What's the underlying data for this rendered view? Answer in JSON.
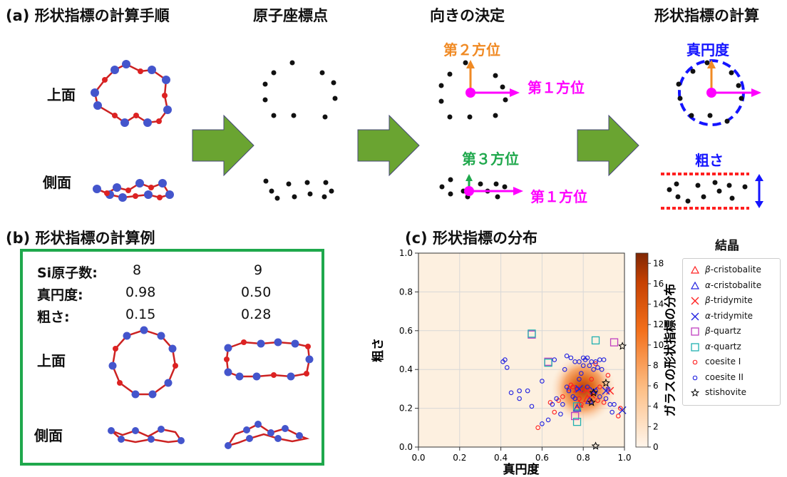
{
  "panel_a": {
    "title": "(a) 形状指標の計算手順",
    "col_atoms": "原子座標点",
    "col_orient": "向きの決定",
    "col_calc": "形状指標の計算",
    "top_view": "上面",
    "side_view": "側面",
    "dir2": "第２方位",
    "dir1_top": "第１方位",
    "dir3": "第３方位",
    "dir1_side": "第１方位",
    "circularity": "真円度",
    "roughness": "粗さ",
    "colors": {
      "orange": "#f08a24",
      "magenta": "#ff00ff",
      "green": "#1fa84c",
      "blue": "#1414ff",
      "red": "#ff2020",
      "arrow": "#6aa431"
    }
  },
  "panel_b": {
    "title": "(b) 形状指標の計算例",
    "si_label": "Si原子数:",
    "circ_label": "真円度:",
    "rough_label": "粗さ:",
    "ex1": {
      "si": "8",
      "circ": "0.98",
      "rough": "0.15"
    },
    "ex2": {
      "si": "9",
      "circ": "0.50",
      "rough": "0.28"
    },
    "top_view": "上面",
    "side_view": "側面"
  },
  "panel_c": {
    "title": "(c) 形状指標の分布",
    "legend_title": "結晶",
    "colorbar_label": "ガラスの形状指標の分布",
    "colorbar_ticks": [
      "0",
      "2",
      "4",
      "6",
      "8",
      "10",
      "12",
      "14",
      "16",
      "18"
    ]
  },
  "chart_data": {
    "type": "scatter",
    "title": "(c) 形状指標の分布",
    "xlabel": "真円度",
    "ylabel": "粗さ",
    "xlim": [
      0,
      1.0
    ],
    "ylim": [
      0,
      1.0
    ],
    "xticks": [
      "0.0",
      "0.2",
      "0.4",
      "0.6",
      "0.8",
      "1.0"
    ],
    "yticks": [
      "0.0",
      "0.2",
      "0.4",
      "0.6",
      "0.8",
      "1.0"
    ],
    "grid": true,
    "legend_position": "right, outside",
    "density": {
      "label": "ガラスの形状指標の分布",
      "peak_x": 0.8,
      "peak_y": 0.3,
      "max": 18
    },
    "series": [
      {
        "name": "β-cristobalite",
        "label_prefix": "β",
        "label_suffix": "-cristobalite",
        "marker": "triangle",
        "color": "#ff2020",
        "points": [
          [
            0.78,
            0.22
          ],
          [
            0.82,
            0.25
          ]
        ]
      },
      {
        "name": "α-cristobalite",
        "label_prefix": "α",
        "label_suffix": "-cristobalite",
        "marker": "triangle",
        "color": "#2020e0",
        "points": [
          [
            0.77,
            0.2
          ],
          [
            0.83,
            0.24
          ]
        ]
      },
      {
        "name": "β-tridymite",
        "label_prefix": "β",
        "label_suffix": "-tridymite",
        "marker": "x",
        "color": "#ff2020",
        "points": [
          [
            0.77,
            0.3
          ],
          [
            0.84,
            0.27
          ],
          [
            0.93,
            0.29
          ]
        ]
      },
      {
        "name": "α-tridymite",
        "label_prefix": "α",
        "label_suffix": "-tridymite",
        "marker": "x",
        "color": "#2020e0",
        "points": [
          [
            0.78,
            0.3
          ],
          [
            0.85,
            0.29
          ],
          [
            0.91,
            0.29
          ],
          [
            0.99,
            0.19
          ]
        ]
      },
      {
        "name": "β-quartz",
        "label_prefix": "β",
        "label_suffix": "-quartz",
        "marker": "square",
        "color": "#c040c0",
        "points": [
          [
            0.55,
            0.58
          ],
          [
            0.63,
            0.44
          ],
          [
            0.76,
            0.16
          ],
          [
            0.95,
            0.54
          ]
        ]
      },
      {
        "name": "α-quartz",
        "label_prefix": "α",
        "label_suffix": "-quartz",
        "marker": "square",
        "color": "#20b0b0",
        "points": [
          [
            0.55,
            0.585
          ],
          [
            0.63,
            0.435
          ],
          [
            0.77,
            0.13
          ],
          [
            0.86,
            0.55
          ],
          [
            0.77,
            0.21
          ]
        ]
      },
      {
        "name": "coesite I",
        "label_prefix": "",
        "label_suffix": "coesite I",
        "marker": "circle",
        "color": "#ff2020",
        "points": [
          [
            0.58,
            0.1
          ],
          [
            0.64,
            0.23
          ],
          [
            0.66,
            0.18
          ],
          [
            0.7,
            0.26
          ],
          [
            0.73,
            0.3
          ],
          [
            0.75,
            0.31
          ],
          [
            0.78,
            0.25
          ],
          [
            0.79,
            0.22
          ],
          [
            0.82,
            0.3
          ],
          [
            0.84,
            0.35
          ],
          [
            0.86,
            0.43
          ],
          [
            0.88,
            0.31
          ],
          [
            0.9,
            0.23
          ],
          [
            0.92,
            0.37
          ],
          [
            0.97,
            0.16
          ],
          [
            0.98,
            0.2
          ],
          [
            0.87,
            0.24
          ],
          [
            0.8,
            0.29
          ],
          [
            0.74,
            0.32
          ],
          [
            0.68,
            0.24
          ]
        ]
      },
      {
        "name": "coesite II",
        "label_prefix": "",
        "label_suffix": "coesite II",
        "marker": "circle",
        "color": "#2020e0",
        "points": [
          [
            0.41,
            0.44
          ],
          [
            0.42,
            0.45
          ],
          [
            0.43,
            0.41
          ],
          [
            0.45,
            0.28
          ],
          [
            0.49,
            0.29
          ],
          [
            0.49,
            0.25
          ],
          [
            0.53,
            0.29
          ],
          [
            0.55,
            0.21
          ],
          [
            0.6,
            0.12
          ],
          [
            0.63,
            0.14
          ],
          [
            0.65,
            0.22
          ],
          [
            0.67,
            0.25
          ],
          [
            0.69,
            0.17
          ],
          [
            0.7,
            0.22
          ],
          [
            0.72,
            0.31
          ],
          [
            0.73,
            0.29
          ],
          [
            0.75,
            0.26
          ],
          [
            0.77,
            0.3
          ],
          [
            0.78,
            0.35
          ],
          [
            0.79,
            0.38
          ],
          [
            0.8,
            0.42
          ],
          [
            0.81,
            0.45
          ],
          [
            0.82,
            0.46
          ],
          [
            0.83,
            0.42
          ],
          [
            0.84,
            0.44
          ],
          [
            0.85,
            0.4
          ],
          [
            0.86,
            0.44
          ],
          [
            0.87,
            0.41
          ],
          [
            0.88,
            0.45
          ],
          [
            0.89,
            0.4
          ],
          [
            0.9,
            0.45
          ],
          [
            0.92,
            0.3
          ],
          [
            0.93,
            0.22
          ],
          [
            0.94,
            0.18
          ],
          [
            0.71,
            0.4
          ],
          [
            0.72,
            0.47
          ],
          [
            0.74,
            0.46
          ],
          [
            0.76,
            0.44
          ],
          [
            0.78,
            0.44
          ],
          [
            0.8,
            0.46
          ],
          [
            0.6,
            0.34
          ],
          [
            0.66,
            0.45
          ],
          [
            0.82,
            0.31
          ],
          [
            0.86,
            0.29
          ],
          [
            0.88,
            0.26
          ],
          [
            0.91,
            0.25
          ],
          [
            0.95,
            0.22
          ],
          [
            0.76,
            0.25
          ]
        ]
      },
      {
        "name": "stishovite",
        "label_prefix": "",
        "label_suffix": "stishovite",
        "marker": "star",
        "color": "#000000",
        "points": [
          [
            0.99,
            0.52
          ],
          [
            0.91,
            0.33
          ],
          [
            0.85,
            0.28
          ],
          [
            0.84,
            0.23
          ],
          [
            0.86,
            0.005
          ]
        ]
      }
    ]
  }
}
